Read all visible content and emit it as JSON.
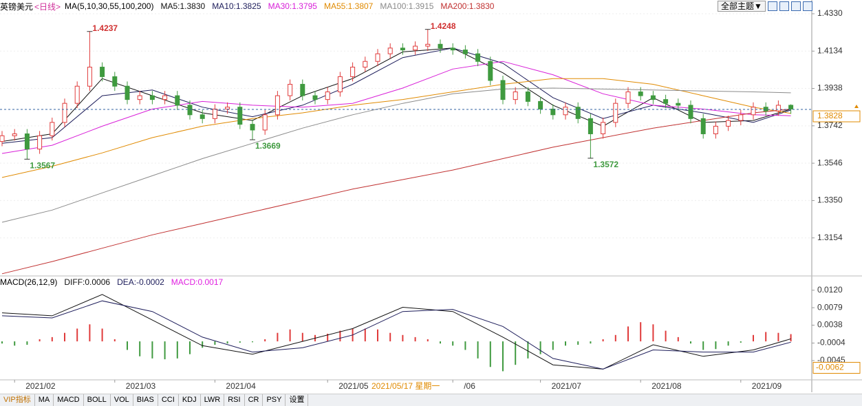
{
  "chart_data": [
    {
      "type": "candlestick",
      "title": "英镑美元",
      "subtitle": "<日线>",
      "indicator": "MA(5,10,30,55,100,200)",
      "categories": [
        null,
        "2021/02",
        null,
        null,
        null,
        null,
        null,
        null,
        null,
        "2021/03",
        null,
        null,
        null,
        null,
        null,
        null,
        null,
        "2021/04",
        null,
        null,
        null,
        null,
        null,
        null,
        null,
        null,
        "2021/05",
        null,
        null,
        null,
        null,
        null,
        null,
        null,
        null,
        null,
        "/06",
        null,
        null,
        null,
        null,
        null,
        null,
        "2021/07",
        null,
        null,
        null,
        null,
        null,
        null,
        null,
        "2021/08",
        null,
        null,
        null,
        null,
        null,
        null,
        null,
        "2021/09",
        null,
        null,
        null,
        null
      ],
      "open": [
        1.366,
        1.369,
        1.37,
        1.362,
        1.369,
        1.376,
        1.386,
        1.395,
        1.405,
        1.4,
        1.395,
        1.388,
        1.39,
        1.388,
        1.39,
        1.385,
        1.38,
        1.378,
        1.383,
        1.384,
        1.375,
        1.372,
        1.38,
        1.39,
        1.396,
        1.39,
        1.388,
        1.392,
        1.4,
        1.405,
        1.408,
        1.412,
        1.415,
        1.414,
        1.416,
        1.417,
        1.415,
        1.414,
        1.412,
        1.408,
        1.398,
        1.388,
        1.392,
        1.387,
        1.383,
        1.38,
        1.384,
        1.378,
        1.37,
        1.376,
        1.386,
        1.392,
        1.39,
        1.388,
        1.386,
        1.385,
        1.378,
        1.37,
        1.374,
        1.377,
        1.38,
        1.384,
        1.382,
        1.385
      ],
      "high": [
        1.3715,
        1.3725,
        1.3725,
        1.3715,
        1.3785,
        1.3885,
        1.3975,
        1.4237,
        1.4075,
        1.4025,
        1.3975,
        1.3925,
        1.3925,
        1.3925,
        1.3925,
        1.3875,
        1.3825,
        1.3855,
        1.3865,
        1.3865,
        1.3775,
        1.3825,
        1.3925,
        1.3985,
        1.3985,
        1.3925,
        1.3945,
        1.4025,
        1.4075,
        1.4105,
        1.4145,
        1.4175,
        1.4175,
        1.4185,
        1.4248,
        1.4195,
        1.4175,
        1.4165,
        1.4145,
        1.4105,
        1.4005,
        1.3945,
        1.3945,
        1.3895,
        1.3855,
        1.3865,
        1.3865,
        1.3805,
        1.3785,
        1.3885,
        1.3945,
        1.3945,
        1.3925,
        1.3905,
        1.3885,
        1.3875,
        1.3805,
        1.3765,
        1.3795,
        1.3825,
        1.3865,
        1.3865,
        1.3875,
        1.3855
      ],
      "low": [
        1.3635,
        1.3665,
        1.3567,
        1.3595,
        1.3665,
        1.3735,
        1.3835,
        1.3925,
        1.3975,
        1.3925,
        1.3855,
        1.3855,
        1.3855,
        1.3855,
        1.3825,
        1.3775,
        1.3755,
        1.3755,
        1.3805,
        1.3725,
        1.3669,
        1.3695,
        1.3775,
        1.3875,
        1.3875,
        1.3855,
        1.3855,
        1.3895,
        1.3975,
        1.4025,
        1.4055,
        1.4095,
        1.4115,
        1.4115,
        1.4135,
        1.4125,
        1.4115,
        1.4095,
        1.4055,
        1.3955,
        1.3855,
        1.3855,
        1.3845,
        1.3805,
        1.3775,
        1.3775,
        1.3755,
        1.3572,
        1.3675,
        1.3735,
        1.3835,
        1.3875,
        1.3855,
        1.3835,
        1.3825,
        1.3755,
        1.3675,
        1.3675,
        1.3715,
        1.3745,
        1.3775,
        1.3795,
        1.3795,
        1.3805
      ],
      "close": [
        1.369,
        1.37,
        1.362,
        1.369,
        1.376,
        1.386,
        1.395,
        1.405,
        1.4,
        1.395,
        1.388,
        1.39,
        1.388,
        1.39,
        1.385,
        1.38,
        1.378,
        1.383,
        1.384,
        1.375,
        1.372,
        1.38,
        1.39,
        1.396,
        1.39,
        1.388,
        1.392,
        1.4,
        1.405,
        1.408,
        1.412,
        1.415,
        1.414,
        1.416,
        1.417,
        1.415,
        1.414,
        1.412,
        1.408,
        1.398,
        1.388,
        1.392,
        1.387,
        1.383,
        1.38,
        1.384,
        1.378,
        1.37,
        1.376,
        1.386,
        1.392,
        1.39,
        1.388,
        1.386,
        1.385,
        1.378,
        1.37,
        1.374,
        1.377,
        1.38,
        1.384,
        1.382,
        1.385,
        1.383
      ],
      "up_color": "#e03a3a",
      "down_color": "#3f9a3f",
      "ylim": [
        1.2958,
        1.4348
      ],
      "yticks": [
        {
          "value": 1.433,
          "label": "1.4330"
        },
        1.4134,
        1.3938,
        1.3742,
        1.3546,
        {
          "value": 1.335,
          "label": "1.3350"
        },
        1.3154
      ],
      "grid": true,
      "current_price": 1.3828,
      "crosshair_label": "2021/05/17 星期一",
      "series": [
        {
          "name": "MA5",
          "label": "MA5:1.3830",
          "color": "#111111",
          "x": [
            0,
            4,
            8,
            12,
            16,
            20,
            24,
            28,
            32,
            36,
            40,
            44,
            48,
            52,
            56,
            60,
            63
          ],
          "values": [
            1.366,
            1.37,
            1.399,
            1.39,
            1.381,
            1.377,
            1.39,
            1.399,
            1.413,
            1.415,
            1.402,
            1.385,
            1.374,
            1.389,
            1.376,
            1.377,
            1.383
          ]
        },
        {
          "name": "MA10",
          "label": "MA10:1.3825",
          "color": "#1c1c5a",
          "x": [
            0,
            4,
            8,
            12,
            16,
            20,
            24,
            28,
            32,
            36,
            40,
            44,
            48,
            52,
            56,
            60,
            63
          ],
          "values": [
            1.365,
            1.368,
            1.39,
            1.393,
            1.384,
            1.379,
            1.385,
            1.396,
            1.41,
            1.415,
            1.407,
            1.389,
            1.378,
            1.385,
            1.381,
            1.376,
            1.3825
          ]
        },
        {
          "name": "MA30",
          "label": "MA30:1.3795",
          "color": "#d81ed8",
          "x": [
            0,
            4,
            8,
            12,
            16,
            20,
            24,
            28,
            32,
            36,
            40,
            44,
            48,
            52,
            56,
            60,
            63
          ],
          "values": [
            1.3597,
            1.364,
            1.374,
            1.383,
            1.387,
            1.385,
            1.384,
            1.386,
            1.394,
            1.404,
            1.408,
            1.401,
            1.391,
            1.385,
            1.383,
            1.38,
            1.3795
          ]
        },
        {
          "name": "MA55",
          "label": "MA55:1.3807",
          "color": "#e08a00",
          "x": [
            0,
            4,
            8,
            12,
            16,
            20,
            24,
            28,
            32,
            36,
            40,
            44,
            48,
            52,
            56,
            60,
            63
          ],
          "values": [
            1.3471,
            1.353,
            1.36,
            1.368,
            1.374,
            1.378,
            1.381,
            1.385,
            1.388,
            1.392,
            1.396,
            1.399,
            1.399,
            1.396,
            1.39,
            1.384,
            1.3807
          ]
        },
        {
          "name": "MA100",
          "label": "MA100:1.3915",
          "color": "#8a8a8a",
          "x": [
            0,
            4,
            8,
            12,
            16,
            20,
            24,
            28,
            32,
            36,
            40,
            44,
            48,
            52,
            56,
            60,
            63
          ],
          "values": [
            1.3236,
            1.33,
            1.339,
            1.348,
            1.357,
            1.365,
            1.373,
            1.38,
            1.386,
            1.391,
            1.3935,
            1.394,
            1.3935,
            1.393,
            1.3925,
            1.392,
            1.3915
          ]
        },
        {
          "name": "MA200",
          "label": "MA200:1.3830",
          "color": "#c03030",
          "x": [
            0,
            4,
            8,
            12,
            16,
            20,
            24,
            28,
            32,
            36,
            40,
            44,
            48,
            52,
            56,
            60,
            63
          ],
          "values": [
            1.2966,
            1.303,
            1.31,
            1.317,
            1.323,
            1.329,
            1.335,
            1.341,
            1.346,
            1.351,
            1.357,
            1.363,
            1.368,
            1.373,
            1.377,
            1.381,
            1.383
          ]
        }
      ]
    },
    {
      "type": "macd",
      "title": "MACD(26,12,9)",
      "ylim": [
        -0.0087,
        0.0147
      ],
      "yticks": [
        {
          "value": 0.012,
          "label": "0.0120"
        },
        0.0079,
        0.0038,
        -0.0004,
        -0.0045
      ],
      "marker_value": -0.0062,
      "histogram": {
        "label": "MACD:0.0017",
        "color": "#e020e0",
        "up_color": "#e03a3a",
        "down_color": "#3f9a3f",
        "values": [
          -0.0005,
          -0.001,
          -0.0008,
          0.0005,
          0.001,
          0.002,
          0.003,
          0.004,
          0.003,
          0.0005,
          -0.002,
          -0.0035,
          -0.004,
          -0.0042,
          -0.004,
          -0.003,
          -0.0015,
          -0.0008,
          -0.0005,
          -0.0003,
          -0.0002,
          0.0005,
          0.002,
          0.0028,
          0.002,
          0.0015,
          0.0018,
          0.0025,
          0.003,
          0.003,
          0.0028,
          0.002,
          0.0015,
          0.001,
          0.0005,
          -0.0005,
          -0.001,
          -0.002,
          -0.004,
          -0.006,
          -0.007,
          -0.0055,
          -0.004,
          -0.003,
          -0.002,
          -0.001,
          -0.0008,
          -0.0005,
          0.0005,
          0.0015,
          0.0035,
          0.0045,
          0.004,
          0.0025,
          0.001,
          -0.0005,
          -0.002,
          -0.0018,
          -0.001,
          -0.0003,
          0.0015,
          0.0022,
          0.002,
          0.0017
        ]
      },
      "series": [
        {
          "name": "DIFF",
          "label": "DIFF:0.0006",
          "color": "#111111",
          "x": [
            0,
            4,
            8,
            12,
            16,
            20,
            24,
            28,
            32,
            36,
            40,
            44,
            48,
            52,
            56,
            60,
            63
          ],
          "values": [
            0.0067,
            0.006,
            0.011,
            0.005,
            -0.001,
            -0.003,
            0.0,
            0.003,
            0.008,
            0.007,
            0.001,
            -0.0055,
            -0.0065,
            -0.0008,
            -0.0035,
            -0.002,
            0.0006
          ]
        },
        {
          "name": "DEA",
          "label": "DEA:-0.0002",
          "color": "#1c1c5a",
          "x": [
            0,
            4,
            8,
            12,
            16,
            20,
            24,
            28,
            32,
            36,
            40,
            44,
            48,
            52,
            56,
            60,
            63
          ],
          "values": [
            0.006,
            0.0055,
            0.0095,
            0.007,
            0.001,
            -0.0025,
            -0.0015,
            0.0015,
            0.007,
            0.0075,
            0.0035,
            -0.004,
            -0.0065,
            -0.002,
            -0.0025,
            -0.0025,
            -0.0002
          ]
        }
      ]
    }
  ],
  "toolbar": {
    "theme_button": "全部主题▼"
  },
  "tabs": [
    "VIP指标",
    "MA",
    "MACD",
    "BOLL",
    "VOL",
    "BIAS",
    "CCI",
    "KDJ",
    "LWR",
    "RSI",
    "CR",
    "PSY",
    "设置"
  ]
}
